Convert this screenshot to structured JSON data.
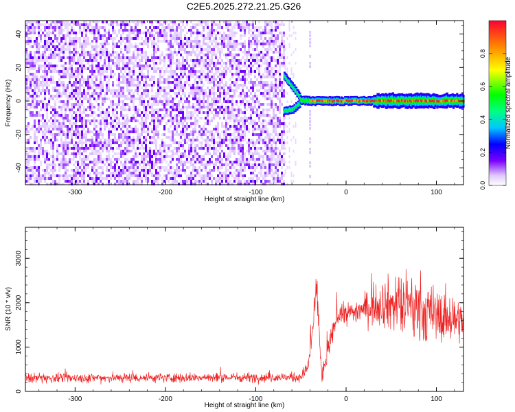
{
  "title": "C2E5.2025.272.21.25.G26",
  "chart_data": [
    {
      "type": "heatmap",
      "xlabel": "Height of straight line (km)",
      "ylabel": "Frequency (Hz)",
      "xlim": [
        -355,
        130
      ],
      "ylim": [
        -50,
        48
      ],
      "xticks": [
        -300,
        -200,
        -100,
        0,
        100
      ],
      "yticks": [
        -40,
        -20,
        0,
        20,
        40
      ],
      "colorbar": {
        "label": "Normalized spectral amplitude",
        "range": [
          0,
          1
        ],
        "ticks": [
          0.0,
          0.2,
          0.4,
          0.6,
          0.8
        ],
        "tick_labels": [
          "0.0",
          "0.2",
          "0.4",
          "0.6",
          "0.8"
        ]
      },
      "noise_region": {
        "x_range": [
          -355,
          -68
        ],
        "frequency_range": [
          -50,
          48
        ],
        "amplitude": 0.1
      },
      "signal_track": {
        "description_points": [
          {
            "x": -68,
            "f_upper": 15,
            "f_lower": -6
          },
          {
            "x": -58,
            "f_upper": 8,
            "f_lower": -5
          },
          {
            "x": -50,
            "f_upper": 2,
            "f_lower": -1
          },
          {
            "x": -40,
            "f_upper": 1,
            "f_lower": -1
          },
          {
            "x": 0,
            "f_upper": 1,
            "f_lower": -1
          },
          {
            "x": 130,
            "f_upper": 1,
            "f_lower": -1
          }
        ]
      }
    },
    {
      "type": "line",
      "xlabel": "Height of straight line (km)",
      "ylabel": "SNR (10 * v/v)",
      "xlim": [
        -355,
        130
      ],
      "ylim": [
        0,
        3700
      ],
      "xticks": [
        -300,
        -200,
        -100,
        0,
        100
      ],
      "yticks": [
        0,
        1000,
        2000,
        3000
      ],
      "color": "#ee2222",
      "envelope": [
        {
          "x": -355,
          "mean": 300,
          "spread": 120
        },
        {
          "x": -50,
          "mean": 320,
          "spread": 120
        },
        {
          "x": -42,
          "mean": 550,
          "spread": 200
        },
        {
          "x": -32,
          "mean": 2300,
          "spread": 700
        },
        {
          "x": -27,
          "mean": 300,
          "spread": 200
        },
        {
          "x": -20,
          "mean": 900,
          "spread": 300
        },
        {
          "x": -10,
          "mean": 1700,
          "spread": 250
        },
        {
          "x": 10,
          "mean": 1800,
          "spread": 300
        },
        {
          "x": 40,
          "mean": 2000,
          "spread": 600
        },
        {
          "x": 70,
          "mean": 1900,
          "spread": 900
        },
        {
          "x": 100,
          "mean": 1700,
          "spread": 700
        },
        {
          "x": 130,
          "mean": 1600,
          "spread": 500
        }
      ]
    }
  ]
}
